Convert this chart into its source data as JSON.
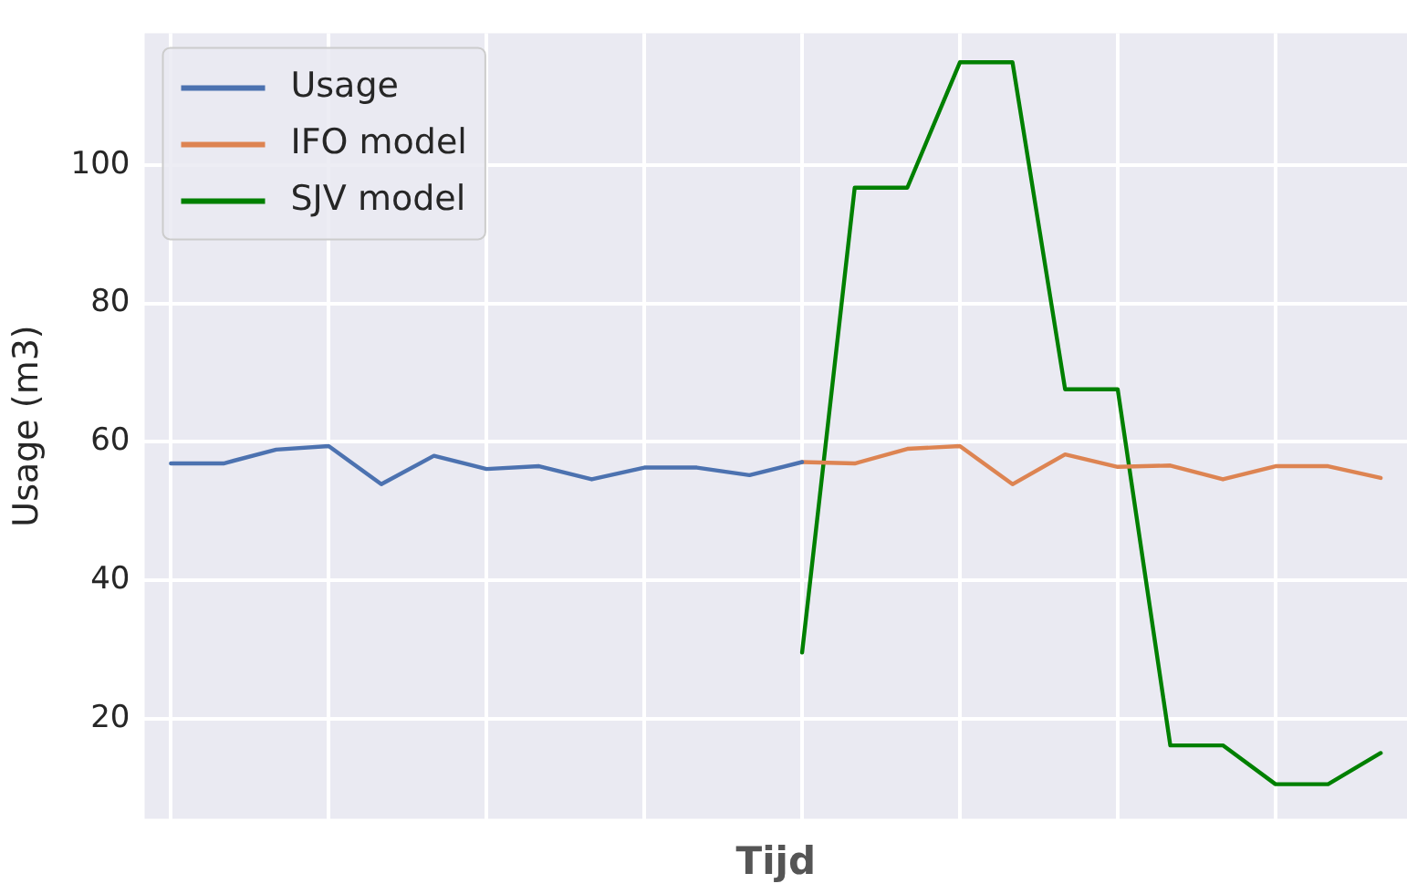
{
  "chart_data": {
    "type": "line",
    "xlabel": "Tijd",
    "ylabel": "Usage (m3)",
    "categories": [
      null,
      null,
      null,
      null,
      null,
      null,
      null,
      null,
      null,
      null,
      null,
      null,
      null,
      null,
      null,
      null,
      null,
      null,
      null,
      null,
      null,
      null,
      null,
      null
    ],
    "ylim": [
      5.6,
      119
    ],
    "yticks": [
      20,
      40,
      60,
      80,
      100
    ],
    "tick_labels": "y",
    "grid": true,
    "legend": "top left",
    "marker": "none",
    "line_style": "solid",
    "series": [
      {
        "name": "Usage",
        "color": "#4c72b0",
        "values": [
          56.9,
          56.9,
          58.9,
          59.4,
          53.9,
          58.0,
          56.1,
          56.5,
          54.6,
          56.3,
          56.3,
          55.2,
          57.1,
          null,
          null,
          null,
          null,
          null,
          null,
          null,
          null,
          null,
          null,
          null
        ]
      },
      {
        "name": "IFO model",
        "color": "#dd8452",
        "values": [
          null,
          null,
          null,
          null,
          null,
          null,
          null,
          null,
          null,
          null,
          null,
          null,
          57.1,
          56.9,
          59.0,
          59.4,
          53.9,
          58.2,
          56.4,
          56.6,
          54.6,
          56.5,
          56.5,
          54.8
        ]
      },
      {
        "name": "SJV model",
        "color": "#008000",
        "values": [
          null,
          null,
          null,
          null,
          null,
          null,
          null,
          null,
          null,
          null,
          null,
          null,
          29.6,
          96.7,
          96.7,
          114.8,
          114.8,
          67.6,
          67.6,
          16.2,
          16.2,
          10.6,
          10.6,
          15.1
        ]
      }
    ]
  }
}
